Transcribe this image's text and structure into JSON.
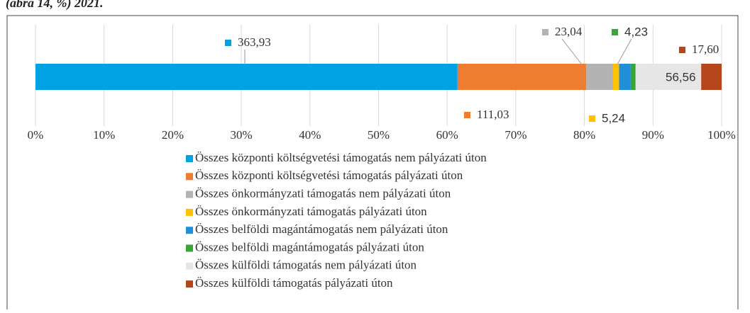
{
  "chart_data": {
    "type": "stacked-bar-100",
    "title": "(ábra 14, %) 2021.",
    "orientation": "horizontal",
    "series": [
      {
        "name": "Összes központi költségvetési támogatás nem pályázati úton",
        "color": "#00a2e3",
        "values": [
          363.93
        ],
        "value_labels": [
          "363,93"
        ]
      },
      {
        "name": "Összes központi költségvetési támogatás pályázati úton",
        "color": "#ee7d31",
        "values": [
          111.03
        ],
        "value_labels": [
          "111,03"
        ]
      },
      {
        "name": "Összes önkormányzati támogatás nem pályázati úton",
        "color": "#b3b3b3",
        "values": [
          23.04
        ],
        "value_labels": [
          "23,04"
        ]
      },
      {
        "name": "Összes önkormányzati támogatás pályázati úton",
        "color": "#ffc000",
        "values": [
          5.24
        ],
        "value_labels": [
          "5,24"
        ]
      },
      {
        "name": "Összes belföldi magántámogatás nem pályázati úton",
        "color": "#1e8fd8",
        "values": [
          10
        ],
        "value_labels": [
          null
        ]
      },
      {
        "name": "Összes belföldi magántámogatás pályázati úton",
        "color": "#3aa535",
        "values": [
          4.23
        ],
        "value_labels": [
          "4,23"
        ]
      },
      {
        "name": "Összes külföldi támogatás nem pályázati úton",
        "color": "#e6e6e6",
        "values": [
          56.56
        ],
        "value_labels": [
          "56,56"
        ]
      },
      {
        "name": "Összes külföldi támogatás pályázati úton",
        "color": "#b5451b",
        "values": [
          17.6
        ],
        "value_labels": [
          "17,60"
        ]
      }
    ],
    "xlim": [
      0,
      100
    ],
    "xticks": [
      {
        "value": 0,
        "label": "0%"
      },
      {
        "value": 10,
        "label": "10%"
      },
      {
        "value": 20,
        "label": "20%"
      },
      {
        "value": 30,
        "label": "30%"
      },
      {
        "value": 40,
        "label": "40%"
      },
      {
        "value": 50,
        "label": "50%"
      },
      {
        "value": 60,
        "label": "60%"
      },
      {
        "value": 70,
        "label": "70%"
      },
      {
        "value": 80,
        "label": "80%"
      },
      {
        "value": 90,
        "label": "90%"
      },
      {
        "value": 100,
        "label": "100%"
      }
    ],
    "grid": true,
    "legend": "bottom"
  }
}
